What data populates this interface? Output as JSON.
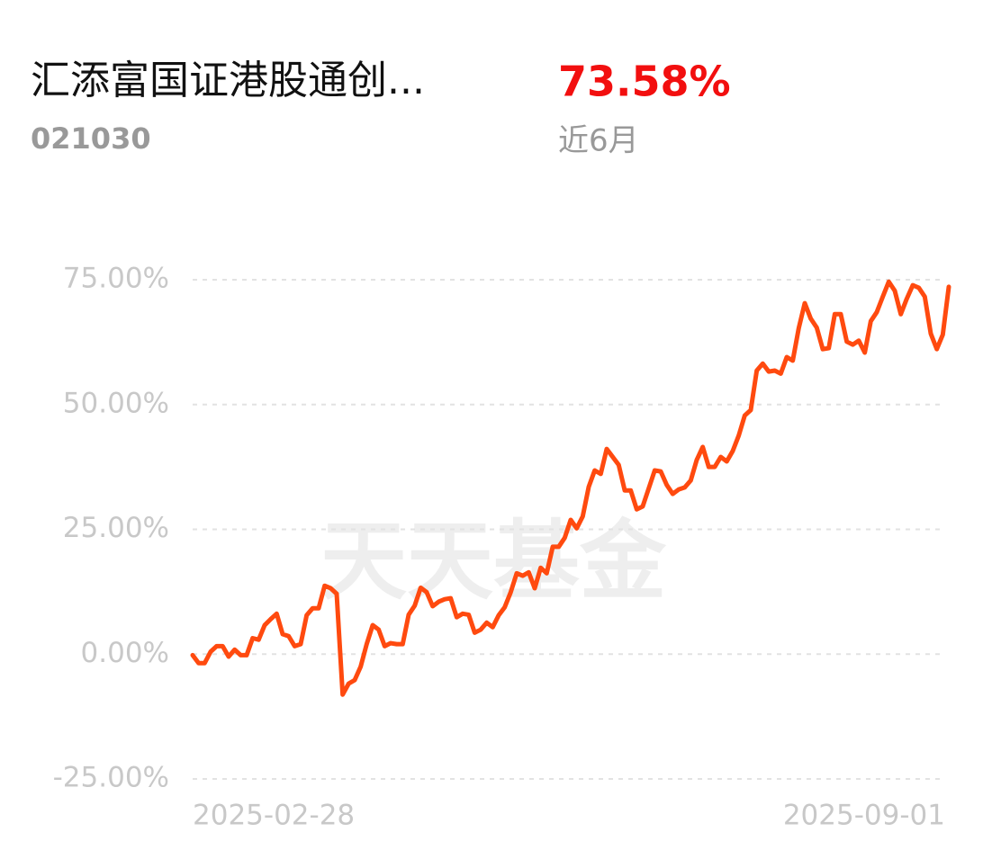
{
  "header": {
    "title": "汇添富国证港股通创...",
    "code": "021030",
    "return": "73.58%",
    "period": "近6月"
  },
  "watermark": "天天基金",
  "chart_data": {
    "type": "line",
    "categories": [
      "2025-02-28",
      null,
      null,
      null,
      null,
      null,
      null,
      null,
      null,
      null,
      null,
      null,
      null,
      null,
      null,
      null,
      null,
      null,
      null,
      null,
      null,
      null,
      null,
      null,
      null,
      null,
      null,
      null,
      null,
      null,
      null,
      null,
      null,
      null,
      null,
      null,
      null,
      null,
      null,
      null,
      null,
      null,
      null,
      null,
      null,
      null,
      null,
      null,
      null,
      null,
      null,
      null,
      null,
      null,
      null,
      null,
      null,
      null,
      null,
      null,
      null,
      null,
      null,
      null,
      null,
      null,
      null,
      null,
      null,
      null,
      null,
      null,
      null,
      null,
      null,
      null,
      null,
      null,
      null,
      null,
      null,
      null,
      null,
      null,
      null,
      null,
      null,
      null,
      null,
      null,
      null,
      null,
      null,
      null,
      null,
      null,
      null,
      null,
      null,
      null,
      null,
      null,
      null,
      null,
      null,
      null,
      null,
      null,
      null,
      null,
      null,
      null,
      null,
      null,
      null,
      null,
      null,
      null,
      null,
      null,
      null,
      null,
      null,
      null,
      null,
      null,
      "2025-09-01"
    ],
    "series": [
      {
        "name": null,
        "color": "#ff4a0f",
        "values": [
          -0.2,
          -1.8,
          -1.8,
          0.5,
          1.6,
          1.6,
          -0.5,
          0.9,
          -0.2,
          -0.2,
          3.2,
          2.9,
          5.8,
          7.0,
          8.1,
          4.0,
          3.6,
          1.6,
          2.0,
          7.8,
          9.2,
          9.2,
          13.7,
          13.2,
          12.1,
          -8.1,
          -5.9,
          -5.2,
          -2.5,
          2.0,
          5.8,
          4.9,
          1.6,
          2.2,
          2.0,
          2.0,
          7.9,
          9.7,
          13.3,
          12.4,
          9.6,
          10.5,
          11.0,
          11.2,
          7.4,
          8.1,
          7.9,
          4.3,
          4.9,
          6.3,
          5.4,
          7.8,
          9.4,
          12.4,
          16.2,
          15.7,
          16.4,
          13.2,
          17.3,
          16.2,
          21.5,
          21.5,
          23.3,
          26.9,
          25.2,
          27.6,
          33.5,
          36.8,
          36.1,
          41.1,
          39.5,
          37.9,
          32.8,
          32.8,
          29.0,
          29.6,
          33.2,
          36.8,
          36.6,
          33.9,
          32.1,
          33.0,
          33.4,
          34.8,
          38.9,
          41.5,
          37.5,
          37.5,
          39.5,
          38.6,
          40.7,
          43.8,
          47.8,
          48.9,
          56.8,
          58.2,
          56.6,
          56.8,
          56.2,
          59.5,
          58.8,
          65.3,
          70.3,
          67.2,
          65.4,
          61.1,
          61.3,
          68.1,
          68.1,
          62.6,
          62.0,
          62.8,
          60.4,
          66.7,
          68.5,
          71.6,
          74.6,
          72.8,
          68.1,
          71.2,
          73.9,
          73.4,
          71.6,
          64.2,
          61.1,
          64.0,
          73.58
        ]
      }
    ],
    "ylim": [
      -25,
      75
    ],
    "yticks": [
      {
        "value": -25,
        "label": "-25.00%"
      },
      {
        "value": 0,
        "label": "0.00%"
      },
      {
        "value": 25,
        "label": "25.00%"
      },
      {
        "value": 50,
        "label": "50.00%"
      },
      {
        "value": 75,
        "label": "75.00%"
      }
    ],
    "grid": true
  }
}
